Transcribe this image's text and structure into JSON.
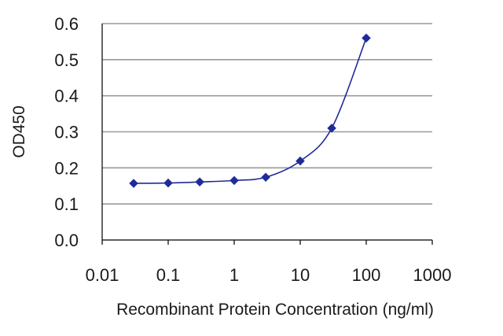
{
  "chart_data": {
    "type": "line",
    "title": "",
    "xlabel": "Recombinant Protein Concentration (ng/ml)",
    "ylabel": "OD450",
    "x_scale": "log",
    "xlim": [
      0.01,
      1000
    ],
    "ylim": [
      0,
      0.6
    ],
    "x_ticks": [
      "0.01",
      "0.1",
      "1",
      "10",
      "100",
      "1000"
    ],
    "y_ticks": [
      "0.0",
      "0.1",
      "0.2",
      "0.3",
      "0.4",
      "0.5",
      "0.6"
    ],
    "grid": "horizontal",
    "legend": "none",
    "colors": {
      "series": "#1f2b99",
      "grid": "#9a9a9a",
      "axis": "#000000"
    },
    "series": [
      {
        "x": [
          0.03,
          0.1,
          0.3,
          1,
          3,
          10,
          30,
          100
        ],
        "y": [
          0.157,
          0.158,
          0.161,
          0.165,
          0.174,
          0.219,
          0.31,
          0.56
        ]
      }
    ]
  }
}
